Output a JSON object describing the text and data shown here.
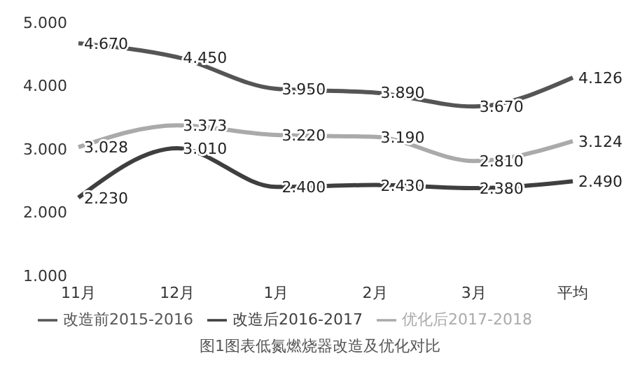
{
  "chart_data": {
    "type": "line",
    "categories": [
      "11月",
      "12月",
      "1月",
      "2月",
      "3月",
      "平均"
    ],
    "series": [
      {
        "name": "改造前2015-2016",
        "color": "#555555",
        "values": [
          4.67,
          4.45,
          3.95,
          3.89,
          3.67,
          4.126
        ],
        "value_labels": [
          "4.670",
          "4.450",
          "3.950",
          "3.890",
          "3.670",
          "4.126"
        ]
      },
      {
        "name": "改造后2016-2017",
        "color": "#3f3f3f",
        "values": [
          2.23,
          3.01,
          2.4,
          2.43,
          2.38,
          2.49
        ],
        "value_labels": [
          "2.230",
          "3.010",
          "2.400",
          "2.430",
          "2.380",
          "2.490"
        ]
      },
      {
        "name": "优化后2017-2018",
        "color": "#aaaaaa",
        "values": [
          3.028,
          3.373,
          3.22,
          3.19,
          2.81,
          3.124
        ],
        "value_labels": [
          "3.028",
          "3.373",
          "3.220",
          "3.190",
          "2.810",
          "3.124"
        ]
      }
    ],
    "ylim": [
      1,
      5
    ],
    "yticks": [
      {
        "value": 1,
        "label": "1.000"
      },
      {
        "value": 2,
        "label": "2.000"
      },
      {
        "value": 3,
        "label": "3.000"
      },
      {
        "value": 4,
        "label": "4.000"
      },
      {
        "value": 5,
        "label": "5.000"
      }
    ],
    "legend": "bottom",
    "marker": "none",
    "line_style": "solid",
    "annotations": [
      "图1图表低氮燃烧器改造及优化对比"
    ]
  }
}
